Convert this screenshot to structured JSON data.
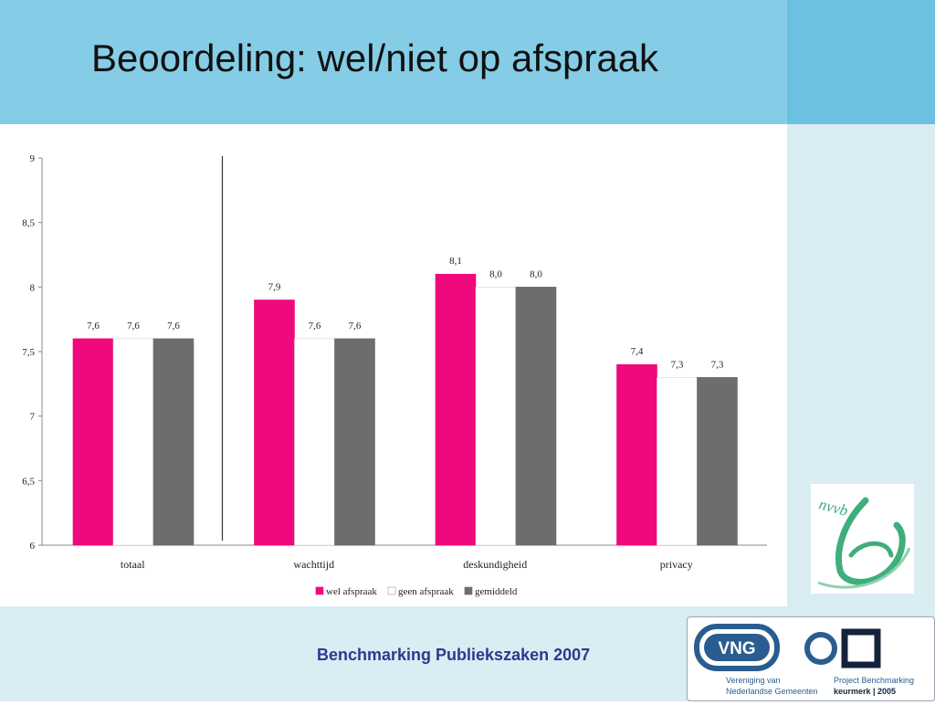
{
  "slide": {
    "title": "Beoordeling: wel/niet op afspraak",
    "footer": "Benchmarking Publiekszaken 2007"
  },
  "logos": {
    "nvvb": {
      "text": "nvvb",
      "color": "#3fae7b"
    },
    "vng": {
      "badge": "VNG",
      "line1": "Vereniging van",
      "line2": "Nederlandse Gemeenten",
      "project_line1": "Project Benchmarking",
      "project_line2": "keurmerk | 2005",
      "color": "#2a5d8f"
    }
  },
  "chart_data": {
    "type": "bar",
    "categories": [
      "totaal",
      "wachttijd",
      "deskundigheid",
      "privacy"
    ],
    "series": [
      {
        "name": "wel afspraak",
        "values": [
          7.6,
          7.9,
          8.1,
          7.4
        ],
        "labels": [
          "7,6",
          "7,9",
          "8,1",
          "7,4"
        ],
        "color": "#f0087d"
      },
      {
        "name": "geen afspraak",
        "values": [
          7.6,
          7.6,
          8.0,
          7.3
        ],
        "labels": [
          "7,6",
          "7,6",
          "8,0",
          "7,3"
        ],
        "color": "#ffffff"
      },
      {
        "name": "gemiddeld",
        "values": [
          7.6,
          7.6,
          8.0,
          7.3
        ],
        "labels": [
          "7,6",
          "7,6",
          "8,0",
          "7,3"
        ],
        "color": "#6d6d6d"
      }
    ],
    "ylim": [
      6,
      9
    ],
    "yticks": [
      6,
      6.5,
      7,
      7.5,
      8,
      8.5,
      9
    ],
    "ytick_labels": [
      "6",
      "6,5",
      "7",
      "7,5",
      "8",
      "8,5",
      "9"
    ],
    "separator_after_category": "totaal",
    "legend_position": "bottom",
    "grid": false
  }
}
